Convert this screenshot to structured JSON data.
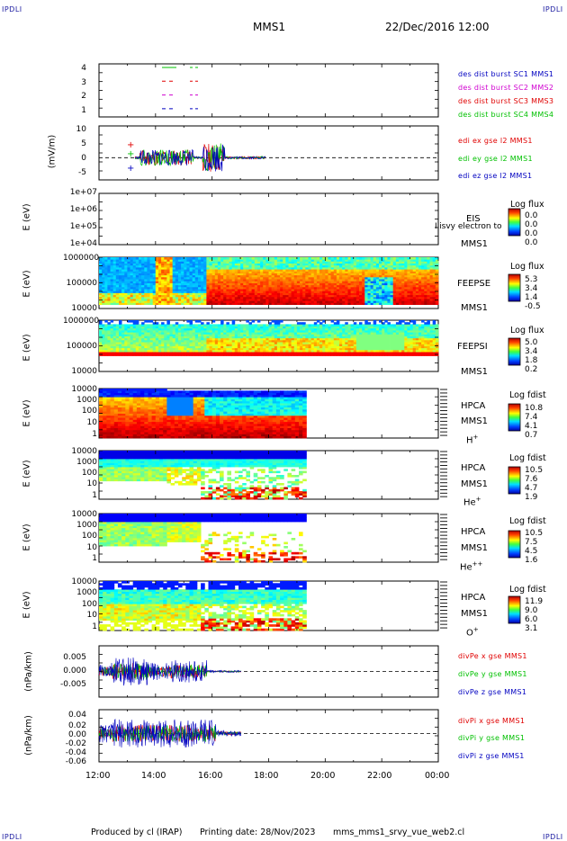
{
  "corners": {
    "tl": "IPDLI",
    "tr": "IPDLI",
    "bl": "IPDLI",
    "br": "IPDLI"
  },
  "header": {
    "spacecraft": "MMS1",
    "datetime": "22/Dec/2016 12:00"
  },
  "footer": {
    "produced": "Produced by cl (IRAP)",
    "printing": "Printing date: 28/Nov/2023",
    "product": "mms_mms1_srvy_vue_web2.cl"
  },
  "colors": {
    "red": "#e00000",
    "green": "#00c000",
    "blue": "#0000c0",
    "magenta": "#d000d0"
  },
  "chart_data": {
    "type": "multi-panel time series / spectrogram",
    "x_ticks": [
      "12:00",
      "14:00",
      "16:00",
      "18:00",
      "20:00",
      "22:00",
      "00:00"
    ],
    "panels": [
      {
        "id": "burst",
        "yticks": [
          "4",
          "3",
          "2",
          "1"
        ],
        "legend": [
          "des dist burst SC1 MMS1",
          "des dist burst SC2 MMS2",
          "des dist burst SC3 MMS3",
          "des dist burst SC4 MMS4"
        ]
      },
      {
        "id": "edi",
        "ylabel": "(mV/m)",
        "yticks": [
          "10",
          "5",
          "0",
          "-5"
        ],
        "ylim": [
          -7,
          10
        ],
        "legend": [
          "edi ex gse l2 MMS1",
          "edi ey gse l2 MMS1",
          "edi ez gse l2 MMS1"
        ]
      },
      {
        "id": "eis",
        "ylabel": "E (eV)",
        "yticks": [
          "1e+07",
          "1e+06",
          "1e+05",
          "1e+04"
        ],
        "instrument": [
          "EIS",
          "MMS1"
        ],
        "overlay": "Ilisvy electron to",
        "cb_title": "Log flux",
        "cb_values": [
          "0.0",
          "0.0",
          "0.0",
          "0.0"
        ]
      },
      {
        "id": "feepse",
        "ylabel": "E (eV)",
        "yticks": [
          "1000000",
          "100000",
          "10000"
        ],
        "instrument": [
          "FEEPSE",
          "MMS1"
        ],
        "cb_title": "Log flux",
        "cb_values": [
          "5.3",
          "3.4",
          "1.4",
          "-0.5"
        ]
      },
      {
        "id": "feepsi",
        "ylabel": "E (eV)",
        "yticks": [
          "1000000",
          "100000",
          "10000"
        ],
        "instrument": [
          "FEEPSI",
          "MMS1"
        ],
        "cb_title": "Log flux",
        "cb_values": [
          "5.0",
          "3.4",
          "1.8",
          "0.2"
        ]
      },
      {
        "id": "hpca_h",
        "ylabel": "E (eV)",
        "yticks": [
          "10000",
          "1000",
          "100",
          "10",
          "1"
        ],
        "instrument": [
          "HPCA",
          "MMS1"
        ],
        "species": "H",
        "charge": "+",
        "cb_title": "Log fdist",
        "cb_values": [
          "10.8",
          "7.4",
          "4.1",
          "0.7"
        ]
      },
      {
        "id": "hpca_he",
        "ylabel": "E (eV)",
        "yticks": [
          "10000",
          "1000",
          "100",
          "10",
          "1"
        ],
        "instrument": [
          "HPCA",
          "MMS1"
        ],
        "species": "He",
        "charge": "+",
        "cb_title": "Log fdist",
        "cb_values": [
          "10.5",
          "7.6",
          "4.7",
          "1.9"
        ]
      },
      {
        "id": "hpca_hepp",
        "ylabel": "E (eV)",
        "yticks": [
          "10000",
          "1000",
          "100",
          "10",
          "1"
        ],
        "instrument": [
          "HPCA",
          "MMS1"
        ],
        "species": "He",
        "charge": "++",
        "cb_title": "Log fdist",
        "cb_values": [
          "10.5",
          "7.5",
          "4.5",
          "1.6"
        ]
      },
      {
        "id": "hpca_o",
        "ylabel": "E (eV)",
        "yticks": [
          "10000",
          "1000",
          "100",
          "10",
          "1"
        ],
        "instrument": [
          "HPCA",
          "MMS1"
        ],
        "species": "O",
        "charge": "+",
        "cb_title": "Log fdist",
        "cb_values": [
          "11.9",
          "9.0",
          "6.0",
          "3.1"
        ]
      },
      {
        "id": "divpe",
        "ylabel": "(nPa/km)",
        "yticks": [
          "0.005",
          "0.000",
          "-0.005"
        ],
        "ylim": [
          -0.009,
          0.009
        ],
        "legend": [
          "divPe x gse MMS1",
          "divPe y gse MMS1",
          "divPe z gse MMS1"
        ]
      },
      {
        "id": "divpi",
        "ylabel": "(nPa/km)",
        "yticks": [
          "0.04",
          "0.02",
          "0.00",
          "-0.02",
          "-0.04",
          "-0.06"
        ],
        "ylim": [
          -0.06,
          0.05
        ],
        "legend": [
          "divPi x gse MMS1",
          "divPi y gse MMS1",
          "divPi z gse MMS1"
        ]
      }
    ]
  }
}
